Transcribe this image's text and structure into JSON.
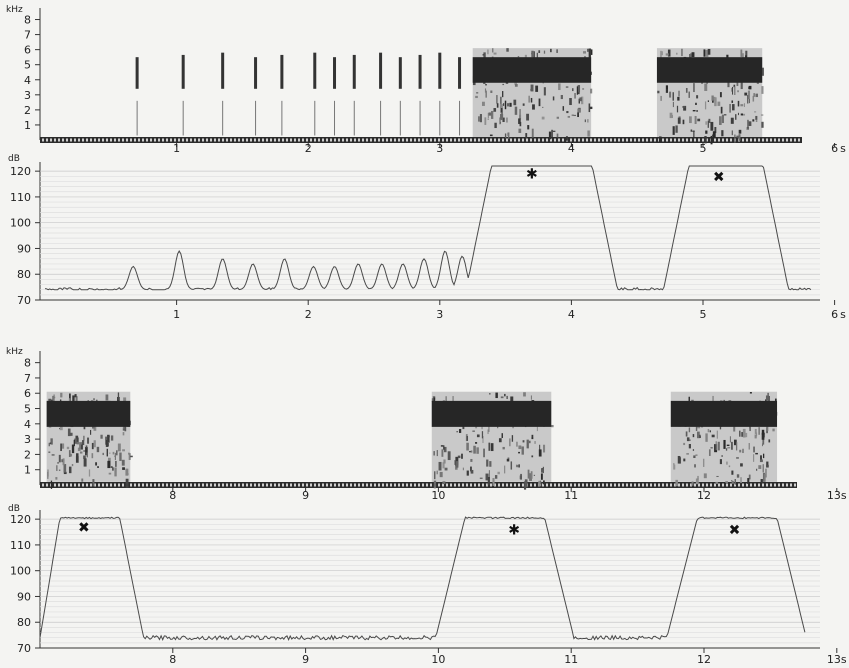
{
  "chart_data": [
    {
      "type": "spectrogram",
      "id": "spec1",
      "ylabel": "kHz",
      "xlabel_unit": "s",
      "xlim": [
        0,
        6
      ],
      "ylim": [
        0,
        8.5
      ],
      "yticks": [
        "1",
        "2",
        "3",
        "4",
        "5",
        "6",
        "7",
        "8"
      ],
      "xticks": [
        "1",
        "2",
        "3",
        "4",
        "5",
        "6"
      ],
      "clicks_s": [
        0.7,
        1.05,
        1.35,
        1.6,
        1.8,
        2.05,
        2.2,
        2.35,
        2.55,
        2.7,
        2.85,
        3.0,
        3.15
      ],
      "bursts": [
        {
          "start_s": 3.25,
          "end_s": 4.15,
          "low_khz": 3.8,
          "high_khz": 5.5
        },
        {
          "start_s": 4.65,
          "end_s": 5.45,
          "low_khz": 3.8,
          "high_khz": 5.5
        }
      ]
    },
    {
      "type": "line",
      "id": "level1",
      "ylabel": "dB",
      "xlabel_unit": "s",
      "xlim": [
        0,
        6
      ],
      "ylim": [
        70,
        122
      ],
      "yticks": [
        "70",
        "80",
        "90",
        "100",
        "110",
        "120"
      ],
      "xticks": [
        "1",
        "2",
        "3",
        "4",
        "5",
        "6"
      ],
      "peak_times_s": [
        0.67,
        1.02,
        1.35,
        1.58,
        1.82,
        2.04,
        2.2,
        2.38,
        2.56,
        2.72,
        2.88,
        3.04,
        3.17
      ],
      "peak_values_db": [
        83,
        89,
        86,
        84,
        86,
        83,
        83,
        84,
        84,
        84,
        86,
        89,
        87
      ],
      "floor_db": 74,
      "plateaus": [
        {
          "rise_start_s": 3.2,
          "top_start_s": 3.4,
          "top_end_s": 4.15,
          "fall_end_s": 4.35,
          "level_db": 124
        },
        {
          "rise_start_s": 4.7,
          "top_start_s": 4.9,
          "top_end_s": 5.45,
          "fall_end_s": 5.65,
          "level_db": 124
        }
      ],
      "markers": [
        {
          "symbol": "✱",
          "x_s": 3.7,
          "y_db": 119
        },
        {
          "symbol": "✖",
          "x_s": 5.12,
          "y_db": 118
        }
      ]
    },
    {
      "type": "spectrogram",
      "id": "spec2",
      "ylabel": "kHz",
      "xlabel_unit": "s",
      "xlim": [
        7,
        13
      ],
      "ylim": [
        0,
        8.5
      ],
      "yticks": [
        "1",
        "2",
        "3",
        "4",
        "5",
        "6",
        "7",
        "8"
      ],
      "xticks": [
        "8",
        "9",
        "10",
        "11",
        "12",
        "13s"
      ],
      "bursts": [
        {
          "start_s": 7.05,
          "end_s": 7.68,
          "low_khz": 3.8,
          "high_khz": 5.5
        },
        {
          "start_s": 9.95,
          "end_s": 10.85,
          "low_khz": 3.8,
          "high_khz": 5.5
        },
        {
          "start_s": 11.75,
          "end_s": 12.55,
          "low_khz": 3.8,
          "high_khz": 5.5
        }
      ]
    },
    {
      "type": "line",
      "id": "level2",
      "ylabel": "dB",
      "xlabel_unit": "s",
      "xlim": [
        7,
        13
      ],
      "ylim": [
        70,
        122
      ],
      "yticks": [
        "70",
        "80",
        "90",
        "100",
        "110",
        "120"
      ],
      "xticks": [
        "8",
        "9",
        "10",
        "11",
        "12",
        "13s"
      ],
      "floor_db": 74,
      "plateaus": [
        {
          "rise_start_s": 7.0,
          "top_start_s": 7.15,
          "top_end_s": 7.6,
          "fall_end_s": 7.78,
          "level_db": 120.5
        },
        {
          "rise_start_s": 9.98,
          "top_start_s": 10.2,
          "top_end_s": 10.8,
          "fall_end_s": 11.02,
          "level_db": 120.5
        },
        {
          "rise_start_s": 11.72,
          "top_start_s": 11.95,
          "top_end_s": 12.55,
          "fall_end_s": 12.77,
          "level_db": 120.5
        }
      ],
      "markers": [
        {
          "symbol": "✖",
          "x_s": 7.33,
          "y_db": 117
        },
        {
          "symbol": "✱",
          "x_s": 10.57,
          "y_db": 116
        },
        {
          "symbol": "✖",
          "x_s": 12.23,
          "y_db": 116
        }
      ]
    }
  ]
}
